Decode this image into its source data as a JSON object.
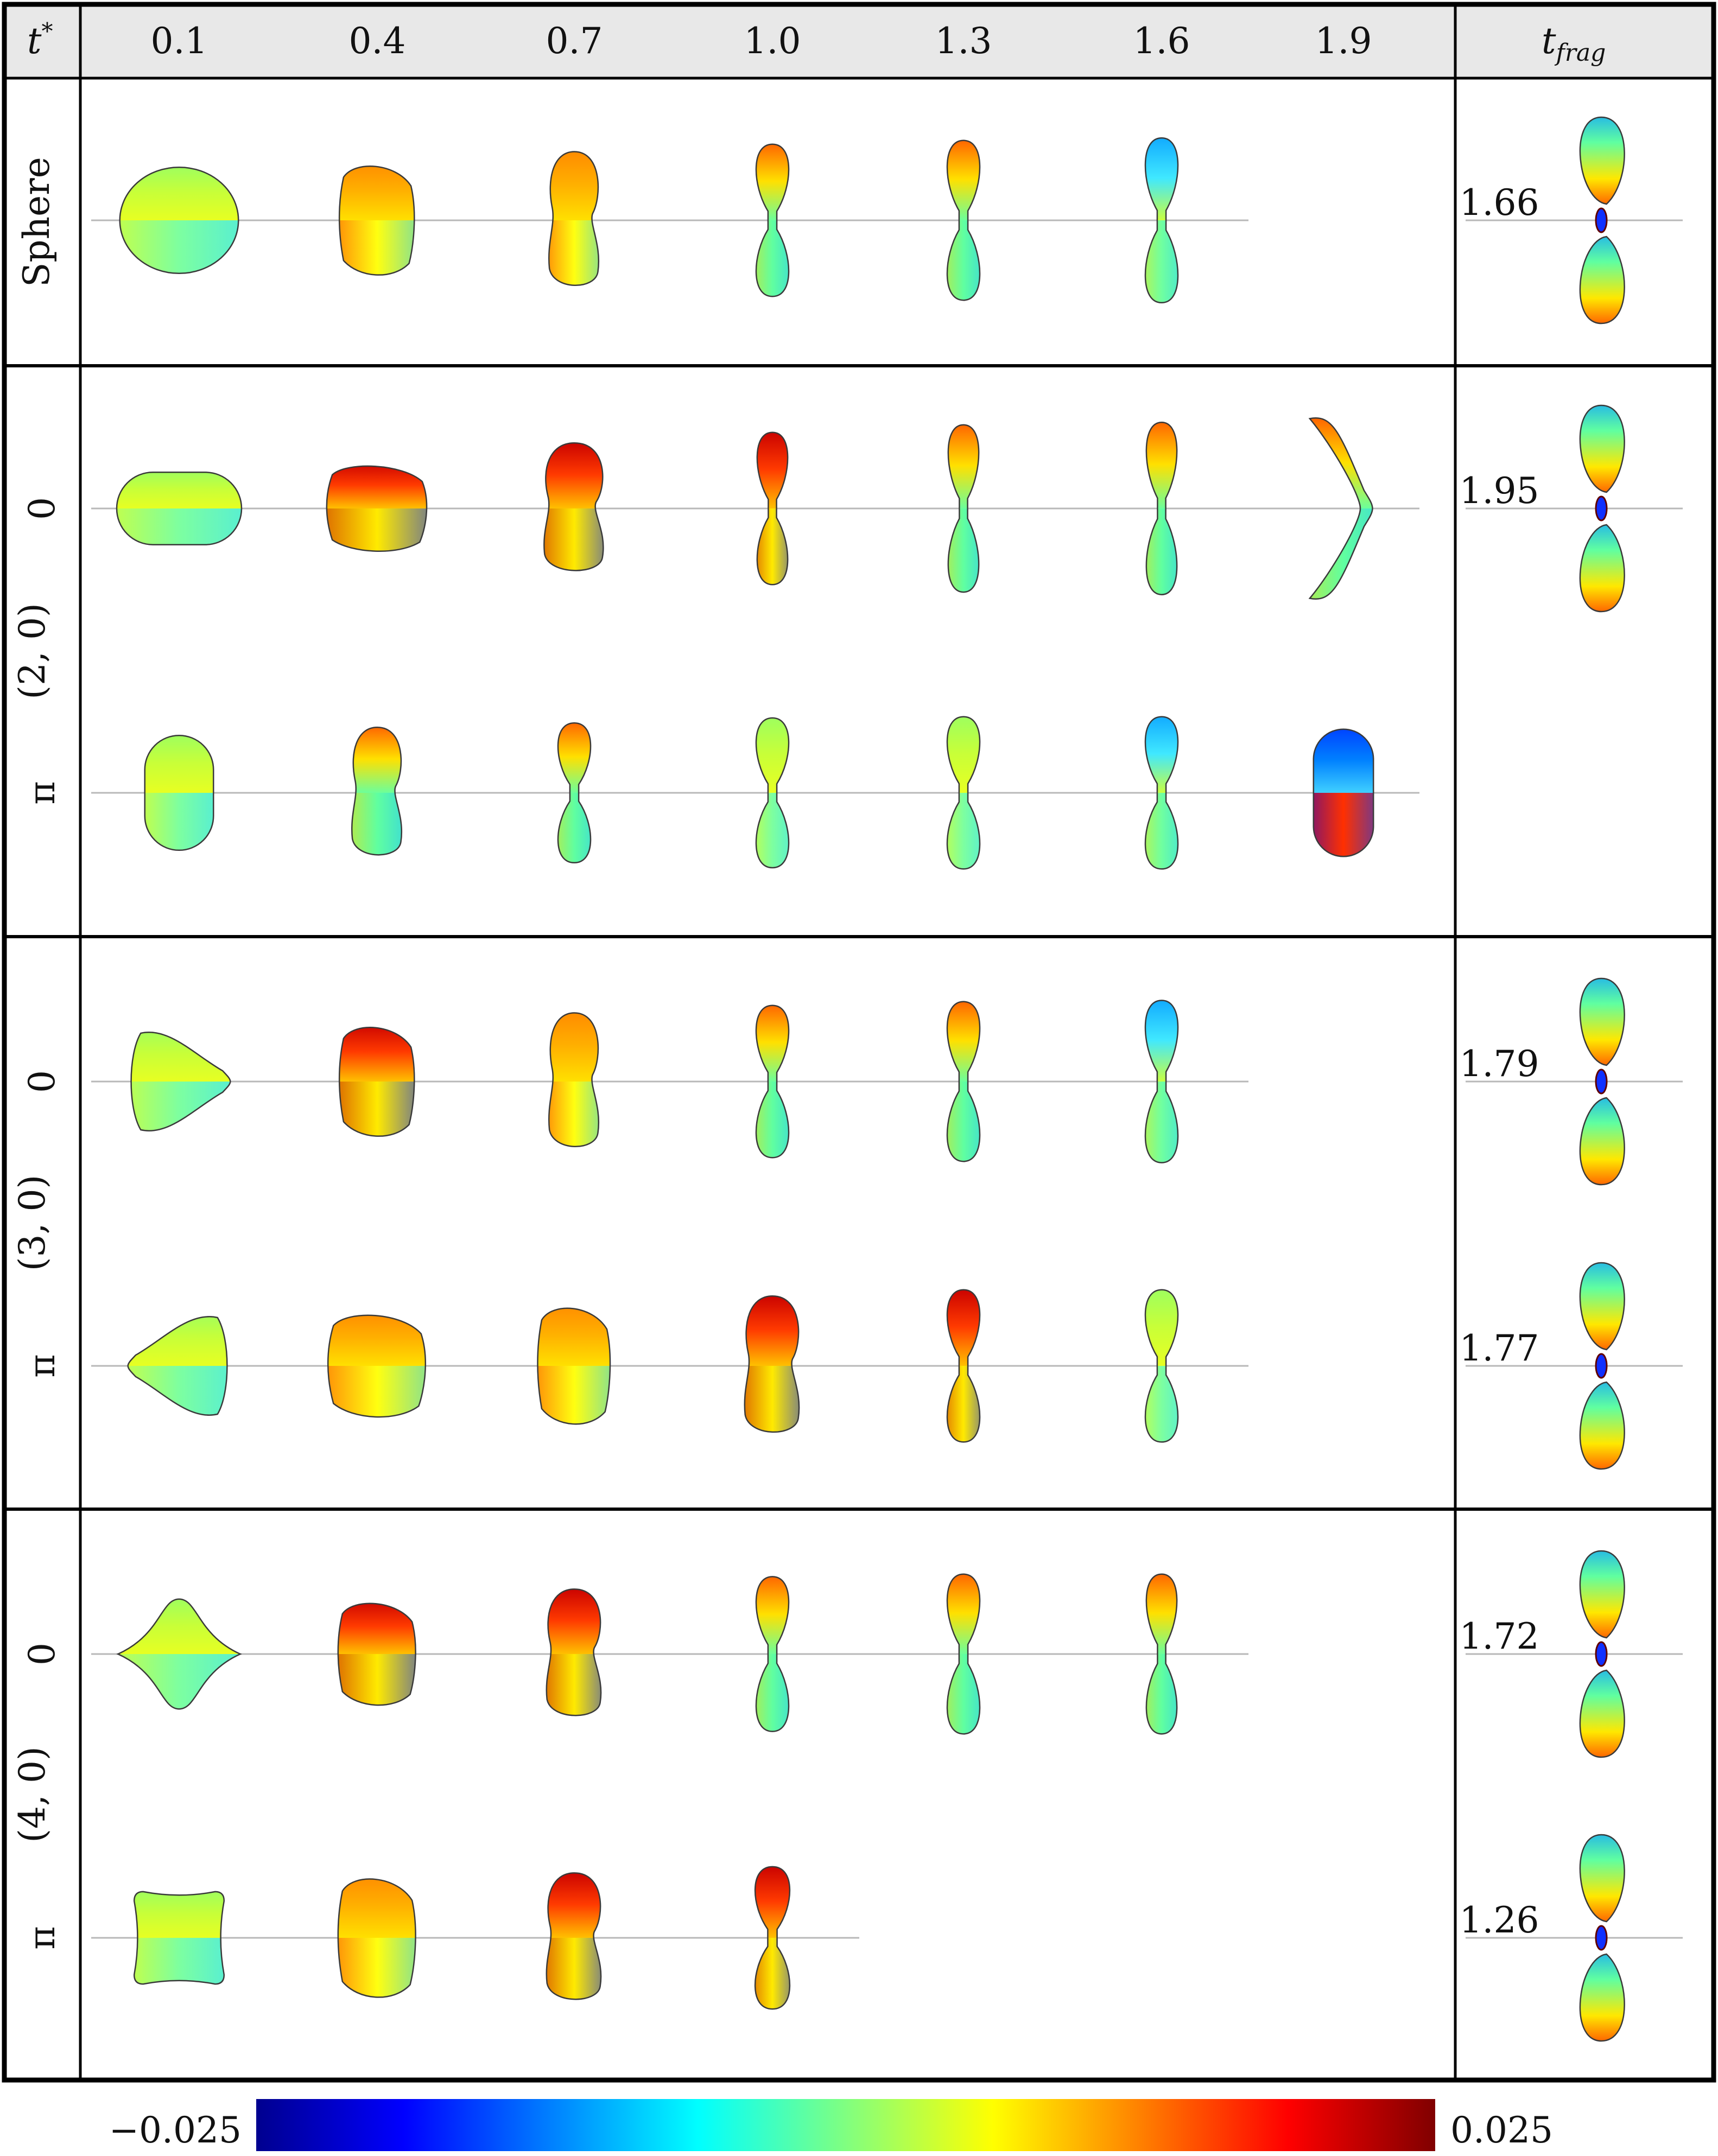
{
  "header": {
    "t_label": "t",
    "t_sup": "*",
    "times": [
      "0.1",
      "0.4",
      "0.7",
      "1.0",
      "1.3",
      "1.6",
      "1.9"
    ],
    "frag_label": "t",
    "frag_sub": "frag"
  },
  "groups": [
    {
      "name": "Sphere",
      "rows": [
        {
          "phase": "",
          "frag": "1.66",
          "shapes": [
            {
              "kind": "disc",
              "w": 0.95,
              "h": 0.85,
              "palette": "greenyellow"
            },
            {
              "kind": "blob",
              "w": 0.6,
              "h": 0.92,
              "palette": "orangemix"
            },
            {
              "kind": "peanut",
              "w": 0.42,
              "h": 1.1,
              "palette": "orangemix"
            },
            {
              "kind": "dumbbell",
              "w": 0.32,
              "h": 1.22,
              "palette": "mixed"
            },
            {
              "kind": "dumbbell",
              "w": 0.32,
              "h": 1.28,
              "palette": "mixed"
            },
            {
              "kind": "dumbbell",
              "w": 0.32,
              "h": 1.32,
              "palette": "cyanmix"
            },
            null
          ]
        }
      ]
    },
    {
      "name": "(2, 0)",
      "rows": [
        {
          "phase": "0",
          "frag": "1.95",
          "shapes": [
            {
              "kind": "capsule",
              "w": 1.0,
              "h": 0.58,
              "palette": "greenyellow"
            },
            {
              "kind": "blob",
              "w": 0.8,
              "h": 0.72,
              "palette": "redblue"
            },
            {
              "kind": "peanut",
              "w": 0.5,
              "h": 1.05,
              "palette": "redblue"
            },
            {
              "kind": "dumbbell",
              "w": 0.3,
              "h": 1.22,
              "palette": "redblue"
            },
            {
              "kind": "dumbbell",
              "w": 0.3,
              "h": 1.34,
              "palette": "mixed"
            },
            {
              "kind": "dumbbell",
              "w": 0.3,
              "h": 1.38,
              "palette": "mixed"
            },
            {
              "kind": "arc",
              "w": 0.6,
              "h": 1.44,
              "palette": "mixed"
            }
          ]
        },
        {
          "phase": "π",
          "frag": "",
          "shapes": [
            {
              "kind": "capsule",
              "w": 0.55,
              "h": 0.92,
              "palette": "greenyellow"
            },
            {
              "kind": "peanut",
              "w": 0.42,
              "h": 1.05,
              "palette": "mixed"
            },
            {
              "kind": "dumbbell",
              "w": 0.32,
              "h": 1.12,
              "palette": "mixed"
            },
            {
              "kind": "dumbbell",
              "w": 0.32,
              "h": 1.2,
              "palette": "greenyellow"
            },
            {
              "kind": "dumbbell",
              "w": 0.32,
              "h": 1.22,
              "palette": "greenyellow"
            },
            {
              "kind": "dumbbell",
              "w": 0.32,
              "h": 1.22,
              "palette": "cyanmix"
            },
            {
              "kind": "capsule",
              "w": 0.48,
              "h": 1.02,
              "palette": "bluemix"
            }
          ]
        }
      ]
    },
    {
      "name": "(3, 0)",
      "rows": [
        {
          "phase": "0",
          "frag": "1.79",
          "shapes": [
            {
              "kind": "triangle",
              "w": 0.82,
              "h": 0.86,
              "palette": "greenyellow"
            },
            {
              "kind": "blob",
              "w": 0.6,
              "h": 0.92,
              "palette": "redblue"
            },
            {
              "kind": "peanut",
              "w": 0.42,
              "h": 1.1,
              "palette": "orangemix"
            },
            {
              "kind": "dumbbell",
              "w": 0.32,
              "h": 1.22,
              "palette": "mixed"
            },
            {
              "kind": "dumbbell",
              "w": 0.32,
              "h": 1.28,
              "palette": "mixed"
            },
            {
              "kind": "dumbbell",
              "w": 0.32,
              "h": 1.3,
              "palette": "cyanmix"
            },
            null
          ]
        },
        {
          "phase": "π",
          "frag": "1.77",
          "shapes": [
            {
              "kind": "triangleL",
              "w": 0.82,
              "h": 0.86,
              "palette": "greenyellow"
            },
            {
              "kind": "blob",
              "w": 0.78,
              "h": 0.86,
              "palette": "orangemix"
            },
            {
              "kind": "blob",
              "w": 0.58,
              "h": 0.98,
              "palette": "orangemix"
            },
            {
              "kind": "peanut",
              "w": 0.46,
              "h": 1.12,
              "palette": "redblue"
            },
            {
              "kind": "dumbbell",
              "w": 0.32,
              "h": 1.22,
              "palette": "redblue"
            },
            {
              "kind": "dumbbell",
              "w": 0.32,
              "h": 1.22,
              "palette": "greenyellow"
            },
            null
          ]
        }
      ]
    },
    {
      "name": "(4, 0)",
      "rows": [
        {
          "phase": "0",
          "frag": "1.72",
          "shapes": [
            {
              "kind": "star4",
              "w": 0.98,
              "h": 0.88,
              "palette": "greenyellow"
            },
            {
              "kind": "blob",
              "w": 0.62,
              "h": 0.86,
              "palette": "redblue"
            },
            {
              "kind": "peanut",
              "w": 0.46,
              "h": 1.04,
              "palette": "redblue"
            },
            {
              "kind": "dumbbell",
              "w": 0.32,
              "h": 1.24,
              "palette": "mixed"
            },
            {
              "kind": "dumbbell",
              "w": 0.32,
              "h": 1.28,
              "palette": "mixed"
            },
            {
              "kind": "dumbbell",
              "w": 0.3,
              "h": 1.28,
              "palette": "mixed"
            },
            null
          ]
        },
        {
          "phase": "π",
          "frag": "1.26",
          "shapes": [
            {
              "kind": "squircle",
              "w": 0.72,
              "h": 0.74,
              "palette": "greenyellow"
            },
            {
              "kind": "blob",
              "w": 0.62,
              "h": 1.0,
              "palette": "orangemix"
            },
            {
              "kind": "peanut",
              "w": 0.46,
              "h": 1.04,
              "palette": "redblue"
            },
            {
              "kind": "dumbbell",
              "w": 0.34,
              "h": 1.14,
              "palette": "redblue"
            },
            null,
            null,
            null
          ]
        }
      ]
    }
  ],
  "colorbar": {
    "min_label": "−0.025",
    "max_label": "0.025",
    "colormap": "jet",
    "stops": [
      "#00008f",
      "#0000ff",
      "#0080ff",
      "#00ffff",
      "#80ff80",
      "#ffff00",
      "#ff8000",
      "#ff0000",
      "#800000"
    ]
  }
}
